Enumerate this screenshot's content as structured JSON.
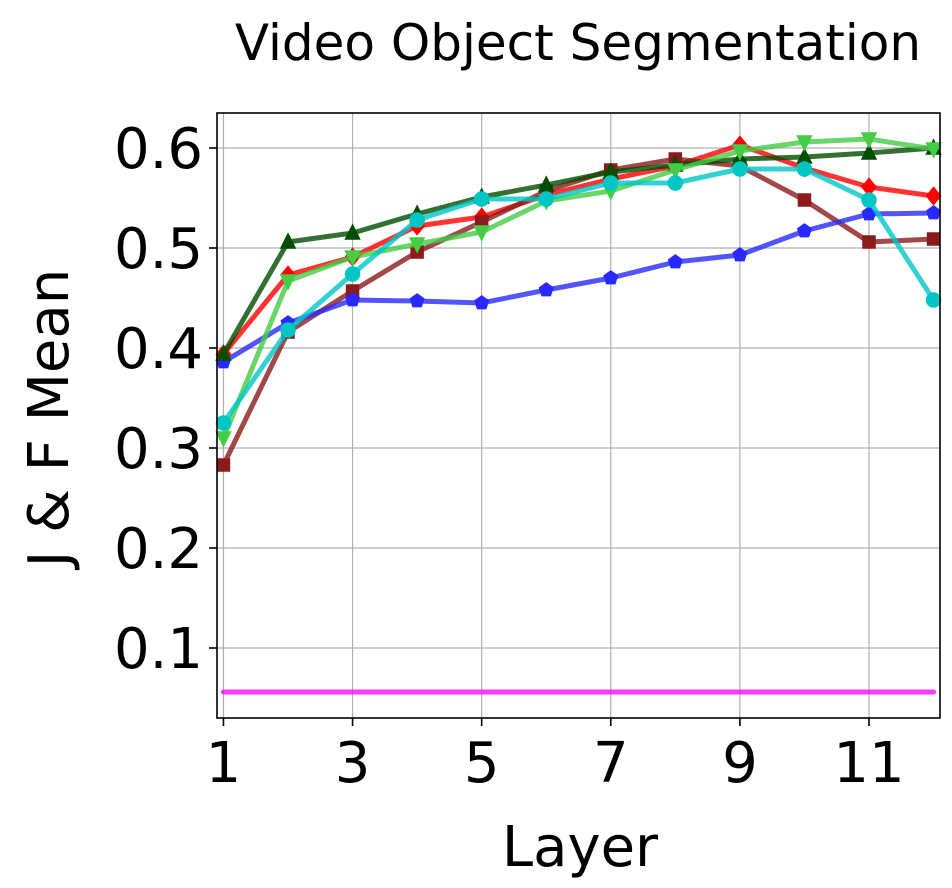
{
  "chart_data": {
    "type": "line",
    "title": "Video Object Segmentation",
    "xlabel": "Layer",
    "ylabel": "J & F Mean",
    "x": [
      1,
      2,
      3,
      4,
      5,
      6,
      7,
      8,
      9,
      10,
      11,
      12
    ],
    "xlim": [
      0.9,
      12.1
    ],
    "ylim": [
      0.03,
      0.635
    ],
    "xticks": [
      1,
      3,
      5,
      7,
      9,
      11
    ],
    "xtick_labels": [
      "1",
      "3",
      "5",
      "7",
      "9",
      "11"
    ],
    "yticks": [
      0.1,
      0.2,
      0.3,
      0.4,
      0.5,
      0.6
    ],
    "ytick_labels": [
      "0.1",
      "0.2",
      "0.3",
      "0.4",
      "0.5",
      "0.6"
    ],
    "grid": true,
    "series": [
      {
        "color": "#ff0000",
        "marker": "diamond",
        "values": [
          0.394,
          0.473,
          0.491,
          0.522,
          0.531,
          0.553,
          0.569,
          0.582,
          0.603,
          0.58,
          0.561,
          0.552
        ]
      },
      {
        "color": "#8b1a1a",
        "marker": "square",
        "values": [
          0.283,
          0.416,
          0.457,
          0.496,
          0.526,
          0.557,
          0.578,
          0.589,
          0.582,
          0.548,
          0.506,
          0.509
        ]
      },
      {
        "color": "#2929ff",
        "marker": "pentagon",
        "values": [
          0.386,
          0.425,
          0.448,
          0.447,
          0.445,
          0.458,
          0.47,
          0.486,
          0.493,
          0.517,
          0.534,
          0.535
        ]
      },
      {
        "color": "#004d00",
        "marker": "triangle-up",
        "values": [
          0.394,
          0.506,
          0.515,
          0.534,
          0.551,
          0.563,
          0.576,
          0.583,
          0.589,
          0.591,
          0.595,
          0.6
        ]
      },
      {
        "color": "#44cc44",
        "marker": "triangle-down",
        "values": [
          0.31,
          0.467,
          0.491,
          0.504,
          0.516,
          0.547,
          0.557,
          0.578,
          0.597,
          0.606,
          0.609,
          0.599
        ]
      },
      {
        "color": "#00c5c5",
        "marker": "circle",
        "values": [
          0.325,
          0.418,
          0.474,
          0.528,
          0.549,
          0.549,
          0.565,
          0.565,
          0.579,
          0.579,
          0.548,
          0.448
        ]
      },
      {
        "color": "#ff00ff",
        "marker": "none",
        "values": [
          0.056,
          0.056,
          0.056,
          0.056,
          0.056,
          0.056,
          0.056,
          0.056,
          0.056,
          0.056,
          0.056,
          0.056
        ]
      }
    ]
  }
}
